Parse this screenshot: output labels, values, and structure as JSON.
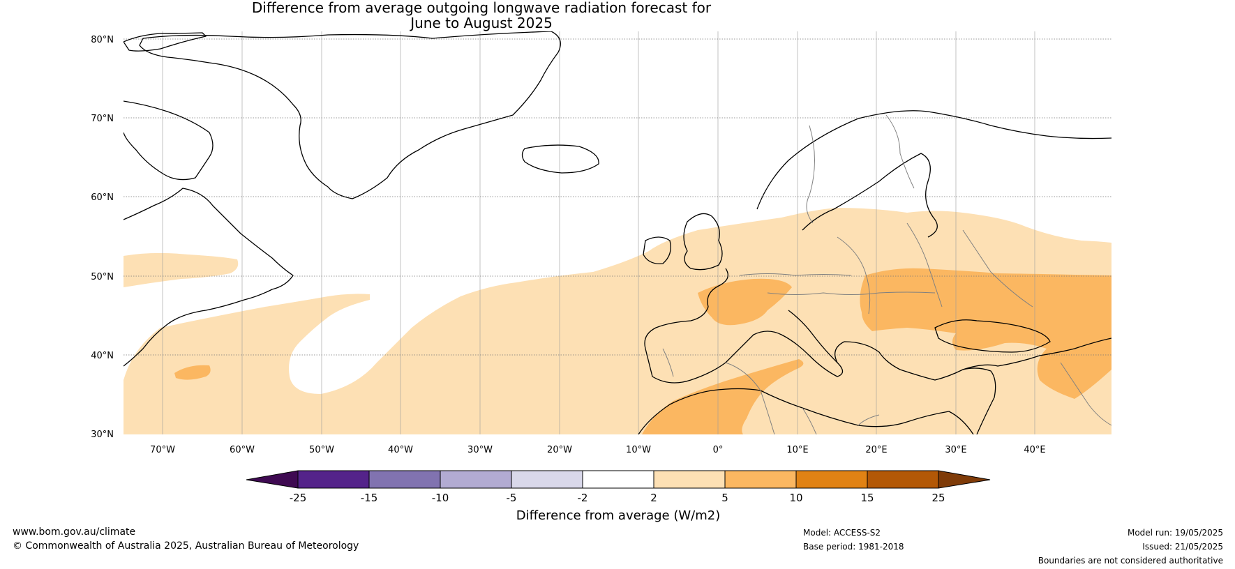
{
  "title_line1": "Difference from average outgoing longwave radiation forecast for",
  "title_line2": "June to August 2025",
  "lat_labels": [
    "80°N",
    "70°N",
    "60°N",
    "50°N",
    "40°N",
    "30°N"
  ],
  "lon_labels": [
    "70°W",
    "60°W",
    "50°W",
    "40°W",
    "30°W",
    "20°W",
    "10°W",
    "0°",
    "10°E",
    "20°E",
    "30°E",
    "40°E"
  ],
  "colorbar": {
    "label": "Difference from average (W/m2)",
    "ticks": [
      "-25",
      "-15",
      "-10",
      "-5",
      "-2",
      "2",
      "5",
      "10",
      "15",
      "25"
    ],
    "bins": [
      {
        "range": "< -25",
        "color": "#3f0a52"
      },
      {
        "range": "-25 to -15",
        "color": "#54238a"
      },
      {
        "range": "-15 to -10",
        "color": "#8173b0"
      },
      {
        "range": "-10 to -5",
        "color": "#b2abd2"
      },
      {
        "range": "-5 to -2",
        "color": "#d9d8ea"
      },
      {
        "range": "-2 to 2",
        "color": "#ffffff"
      },
      {
        "range": "2 to 5",
        "color": "#fde0b4"
      },
      {
        "range": "5 to 10",
        "color": "#fbb761"
      },
      {
        "range": "10 to 15",
        "color": "#e08214"
      },
      {
        "range": "15 to 25",
        "color": "#b35806"
      },
      {
        "range": "> 25",
        "color": "#7f3b08"
      }
    ]
  },
  "footer": {
    "website": "www.bom.gov.au/climate",
    "copyright": "© Commonwealth of Australia 2025, Australian Bureau of Meteorology",
    "model": "Model: ACCESS-S2",
    "base_period": "Base period: 1981-2018",
    "model_run": "Model run: 19/05/2025",
    "issued": "Issued: 21/05/2025",
    "disclaimer": "Boundaries are not considered authoritative"
  }
}
